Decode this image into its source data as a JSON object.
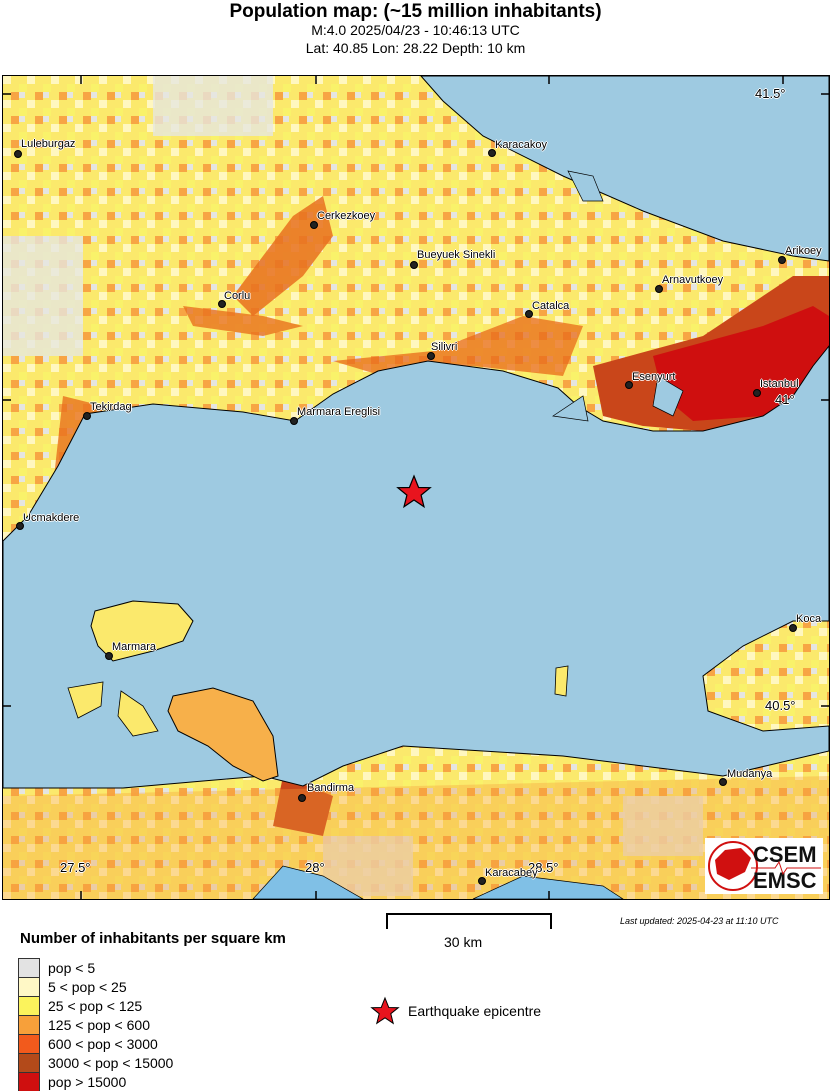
{
  "header": {
    "title": "Population map: (~15 million inhabitants)",
    "event_line": "M:4.0 2025/04/23 - 10:46:13 UTC",
    "location_line": "Lat: 40.85 Lon: 28.22 Depth: 10 km"
  },
  "map": {
    "sea_color": "#9ecae1",
    "lat_ticks": [
      "41.5°",
      "41°",
      "40.5°"
    ],
    "lon_ticks": [
      "27.5°",
      "28°",
      "28.5°"
    ],
    "cities": [
      "Luleburgaz",
      "Karacakoy",
      "Cerkezkoey",
      "Bueyuek Sinekli",
      "Arikoey",
      "Arnavutkoey",
      "Corlu",
      "Catalca",
      "Silivri",
      "Esenyurt",
      "Istanbul",
      "Tekirdag",
      "Marmara Ereglisi",
      "Ucmakdere",
      "Koca",
      "Marmara",
      "Bandirma",
      "Mudanya",
      "Karacabey"
    ],
    "epicentre_icon": "red-star-icon"
  },
  "scale": {
    "label": "30 km"
  },
  "last_updated": "Last updated: 2025-04-23 at 11:10 UTC",
  "legend": {
    "title": "Number of inhabitants per square km",
    "items": [
      {
        "label": "pop < 5",
        "color": "#e3e3e3"
      },
      {
        "label": "5 < pop < 25",
        "color": "#fff8c6"
      },
      {
        "label": "25 < pop < 125",
        "color": "#fbf35c"
      },
      {
        "label": "125 < pop < 600",
        "color": "#f7a03a"
      },
      {
        "label": "600 < pop < 3000",
        "color": "#f25a1c"
      },
      {
        "label": "3000 < pop < 15000",
        "color": "#b34a1a"
      },
      {
        "label": "pop > 15000",
        "color": "#cf0f0f"
      }
    ],
    "epicentre_label": "Earthquake epicentre"
  },
  "logo": {
    "text_top": "CSEM",
    "text_bottom": "EMSC"
  }
}
